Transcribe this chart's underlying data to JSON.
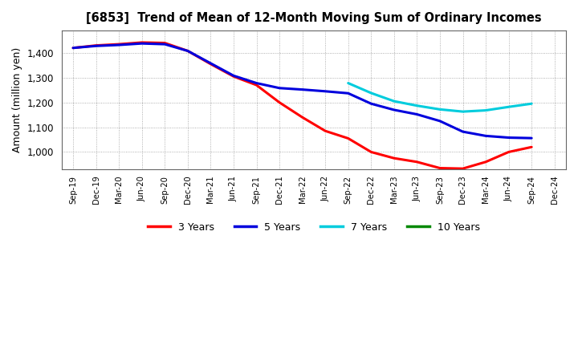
{
  "title": "[6853]  Trend of Mean of 12-Month Moving Sum of Ordinary Incomes",
  "ylabel": "Amount (million yen)",
  "background_color": "#ffffff",
  "plot_bg_color": "#ffffff",
  "grid_color": "#aaaaaa",
  "x_labels": [
    "Sep-19",
    "Dec-19",
    "Mar-20",
    "Jun-20",
    "Sep-20",
    "Dec-20",
    "Mar-21",
    "Jun-21",
    "Sep-21",
    "Dec-21",
    "Mar-22",
    "Jun-22",
    "Sep-22",
    "Dec-22",
    "Mar-23",
    "Jun-23",
    "Sep-23",
    "Dec-23",
    "Mar-24",
    "Jun-24",
    "Sep-24",
    "Dec-24"
  ],
  "ylim": [
    930,
    1490
  ],
  "yticks": [
    1000,
    1100,
    1200,
    1300,
    1400
  ],
  "series": {
    "3 Years": {
      "color": "#ff0000",
      "values": [
        1420,
        1430,
        1435,
        1442,
        1440,
        1408,
        1355,
        1305,
        1270,
        1200,
        1140,
        1085,
        1055,
        1000,
        975,
        960,
        935,
        933,
        960,
        1000,
        1020,
        null
      ]
    },
    "5 Years": {
      "color": "#0000dd",
      "values": [
        1420,
        1428,
        1432,
        1438,
        1435,
        1408,
        1358,
        1308,
        1278,
        1258,
        1252,
        1245,
        1237,
        1195,
        1170,
        1152,
        1125,
        1082,
        1065,
        1058,
        1056,
        null
      ]
    },
    "7 Years": {
      "color": "#00ccdd",
      "values": [
        null,
        null,
        null,
        null,
        null,
        null,
        null,
        null,
        null,
        null,
        null,
        null,
        1278,
        1238,
        1205,
        1187,
        1172,
        1163,
        1168,
        1182,
        1195,
        null
      ]
    },
    "10 Years": {
      "color": "#008800",
      "values": [
        null,
        null,
        null,
        null,
        null,
        null,
        null,
        null,
        null,
        null,
        null,
        null,
        null,
        null,
        null,
        null,
        null,
        null,
        null,
        null,
        null,
        null
      ]
    }
  },
  "legend": {
    "labels": [
      "3 Years",
      "5 Years",
      "7 Years",
      "10 Years"
    ],
    "colors": [
      "#ff0000",
      "#0000dd",
      "#00ccdd",
      "#008800"
    ]
  }
}
